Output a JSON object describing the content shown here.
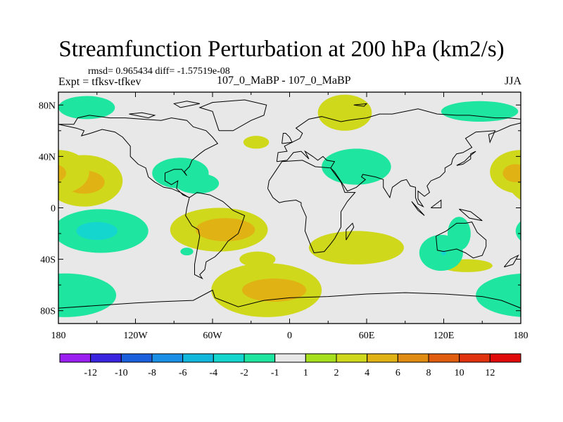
{
  "title": "Streamfunction Perturbation at 200 hPa (km2/s)",
  "stats_line": "rmsd= 0.965434 diff= -1.57519e-08",
  "expt_label": "Expt = tfksv-tfkev",
  "runs_label": "107_0_MaBP - 107_0_MaBP",
  "season": "JJA",
  "lat_labels": [
    {
      "text": "80N",
      "lat": 80
    },
    {
      "text": "40N",
      "lat": 40
    },
    {
      "text": "0",
      "lat": 0
    },
    {
      "text": "40S",
      "lat": -40
    },
    {
      "text": "80S",
      "lat": -80
    }
  ],
  "lon_labels": [
    {
      "text": "180",
      "lon": -180
    },
    {
      "text": "120W",
      "lon": -120
    },
    {
      "text": "60W",
      "lon": -60
    },
    {
      "text": "0",
      "lon": 0
    },
    {
      "text": "60E",
      "lon": 60
    },
    {
      "text": "120E",
      "lon": 120
    },
    {
      "text": "180",
      "lon": 180
    }
  ],
  "colorbar": {
    "colors": [
      "#9a1ff0",
      "#3a24e0",
      "#1c5fdc",
      "#1a8fe6",
      "#11b8dc",
      "#14d6cf",
      "#1ee6a0",
      "#e8e8e8",
      "#a6e01c",
      "#cfd81a",
      "#e0b214",
      "#e08c12",
      "#e05d10",
      "#e0320e",
      "#e00a0a"
    ],
    "labels": [
      "-12",
      "-10",
      "-8",
      "-6",
      "-4",
      "-2",
      "-1",
      "1",
      "2",
      "4",
      "6",
      "8",
      "10",
      "12"
    ]
  },
  "anomalies": [
    {
      "lon": -158,
      "lat": 78,
      "rlon": 22,
      "rlat": 9,
      "level": "-1"
    },
    {
      "lon": -160,
      "lat": 21,
      "rlon": 30,
      "rlat": 20,
      "level": "2"
    },
    {
      "lon": -160,
      "lat": 20,
      "rlon": 16,
      "rlat": 9,
      "level": "4"
    },
    {
      "lon": -147,
      "lat": -18,
      "rlon": 37,
      "rlat": 17,
      "level": "-1"
    },
    {
      "lon": -150,
      "lat": -18,
      "rlon": 16,
      "rlat": 7,
      "level": "-2"
    },
    {
      "lon": -175,
      "lat": -68,
      "rlon": 40,
      "rlat": 17,
      "level": "-1"
    },
    {
      "lon": -85,
      "lat": 27,
      "rlon": 22,
      "rlat": 12,
      "level": "-1"
    },
    {
      "lon": -72,
      "lat": 19,
      "rlon": 17,
      "rlat": 8,
      "level": "-1"
    },
    {
      "lon": -55,
      "lat": -17,
      "rlon": 38,
      "rlat": 17,
      "level": "2"
    },
    {
      "lon": -50,
      "lat": -17,
      "rlon": 23,
      "rlat": 9,
      "level": "4"
    },
    {
      "lon": -80,
      "lat": -34,
      "rlon": 5,
      "rlat": 3,
      "level": "-1"
    },
    {
      "lon": -25,
      "lat": -40,
      "rlon": 14,
      "rlat": 6,
      "level": "2"
    },
    {
      "lon": -18,
      "lat": -64,
      "rlon": 43,
      "rlat": 21,
      "level": "2"
    },
    {
      "lon": -12,
      "lat": -64,
      "rlon": 25,
      "rlat": 9,
      "level": "4"
    },
    {
      "lon": -26,
      "lat": 51,
      "rlon": 10,
      "rlat": 5,
      "level": "2"
    },
    {
      "lon": 43,
      "lat": 74,
      "rlon": 21,
      "rlat": 14,
      "level": "2"
    },
    {
      "lon": 52,
      "lat": 32,
      "rlon": 27,
      "rlat": 14,
      "level": "-1"
    },
    {
      "lon": 52,
      "lat": -31,
      "rlon": 37,
      "rlat": 13,
      "level": "2"
    },
    {
      "lon": 148,
      "lat": 75,
      "rlon": 30,
      "rlat": 8,
      "level": "-1"
    },
    {
      "lon": 180,
      "lat": 28,
      "rlon": 24,
      "rlat": 17,
      "level": "2"
    },
    {
      "lon": 176,
      "lat": 27,
      "rlon": 10,
      "rlat": 7,
      "level": "4"
    },
    {
      "lon": 138,
      "lat": -45,
      "rlon": 20,
      "rlat": 5,
      "level": "2"
    },
    {
      "lon": 118,
      "lat": -35,
      "rlon": 17,
      "rlat": 14,
      "level": "-1"
    },
    {
      "lon": 132,
      "lat": -20,
      "rlon": 9,
      "rlat": 13,
      "level": "-1"
    },
    {
      "lon": 120,
      "lat": -35,
      "rlon": 2,
      "rlat": 2,
      "level": "-2"
    },
    {
      "lon": 180,
      "lat": -72,
      "rlon": 6,
      "rlat": 6,
      "level": "-1"
    }
  ],
  "coastlines": [
    [
      [
        -180,
        65
      ],
      [
        -168,
        65
      ],
      [
        -165,
        70
      ],
      [
        -156,
        72
      ],
      [
        -140,
        70
      ],
      [
        -128,
        70
      ],
      [
        -115,
        69
      ],
      [
        -100,
        68
      ],
      [
        -92,
        70
      ],
      [
        -80,
        68
      ],
      [
        -75,
        63
      ],
      [
        -65,
        60
      ],
      [
        -60,
        55
      ],
      [
        -56,
        50
      ],
      [
        -66,
        45
      ],
      [
        -70,
        42
      ],
      [
        -76,
        37
      ],
      [
        -78,
        32
      ],
      [
        -82,
        28
      ],
      [
        -80,
        25
      ],
      [
        -84,
        30
      ],
      [
        -90,
        30
      ],
      [
        -97,
        27
      ],
      [
        -97,
        21
      ],
      [
        -92,
        18
      ],
      [
        -87,
        21
      ],
      [
        -88,
        15
      ],
      [
        -83,
        10
      ],
      [
        -78,
        8
      ],
      [
        -80,
        9
      ],
      [
        -85,
        12
      ],
      [
        -92,
        15
      ],
      [
        -98,
        16
      ],
      [
        -105,
        20
      ],
      [
        -110,
        24
      ],
      [
        -112,
        31
      ],
      [
        -118,
        34
      ],
      [
        -124,
        40
      ],
      [
        -124,
        48
      ],
      [
        -130,
        55
      ],
      [
        -136,
        59
      ],
      [
        -146,
        61
      ],
      [
        -155,
        58
      ],
      [
        -162,
        56
      ],
      [
        -160,
        60
      ],
      [
        -166,
        62
      ],
      [
        -180,
        65
      ]
    ],
    [
      [
        -78,
        8
      ],
      [
        -72,
        12
      ],
      [
        -62,
        10
      ],
      [
        -52,
        5
      ],
      [
        -44,
        -2
      ],
      [
        -35,
        -6
      ],
      [
        -37,
        -12
      ],
      [
        -40,
        -20
      ],
      [
        -48,
        -26
      ],
      [
        -53,
        -33
      ],
      [
        -58,
        -38
      ],
      [
        -65,
        -42
      ],
      [
        -66,
        -48
      ],
      [
        -70,
        -52
      ],
      [
        -68,
        -55
      ],
      [
        -74,
        -52
      ],
      [
        -74,
        -44
      ],
      [
        -72,
        -33
      ],
      [
        -70,
        -22
      ],
      [
        -71,
        -17
      ],
      [
        -76,
        -14
      ],
      [
        -81,
        -6
      ],
      [
        -80,
        0
      ],
      [
        -78,
        8
      ]
    ],
    [
      [
        -55,
        60
      ],
      [
        -44,
        60
      ],
      [
        -30,
        68
      ],
      [
        -20,
        72
      ],
      [
        -18,
        80
      ],
      [
        -35,
        84
      ],
      [
        -60,
        82
      ],
      [
        -70,
        78
      ],
      [
        -60,
        75
      ],
      [
        -55,
        60
      ]
    ],
    [
      [
        -17,
        15
      ],
      [
        -16,
        21
      ],
      [
        -10,
        30
      ],
      [
        -6,
        36
      ],
      [
        10,
        37
      ],
      [
        20,
        32
      ],
      [
        32,
        31
      ],
      [
        34,
        28
      ],
      [
        40,
        20
      ],
      [
        43,
        12
      ],
      [
        51,
        12
      ],
      [
        45,
        5
      ],
      [
        40,
        -3
      ],
      [
        40,
        -15
      ],
      [
        35,
        -24
      ],
      [
        32,
        -28
      ],
      [
        27,
        -34
      ],
      [
        19,
        -35
      ],
      [
        16,
        -28
      ],
      [
        12,
        -18
      ],
      [
        13,
        -7
      ],
      [
        9,
        2
      ],
      [
        9,
        4
      ],
      [
        5,
        6
      ],
      [
        -4,
        5
      ],
      [
        -8,
        4
      ],
      [
        -13,
        8
      ],
      [
        -17,
        15
      ]
    ],
    [
      [
        -10,
        36
      ],
      [
        -9,
        43
      ],
      [
        -2,
        44
      ],
      [
        -4,
        48
      ],
      [
        2,
        51
      ],
      [
        8,
        54
      ],
      [
        10,
        58
      ],
      [
        5,
        62
      ],
      [
        15,
        69
      ],
      [
        25,
        71
      ],
      [
        40,
        67
      ],
      [
        45,
        68
      ],
      [
        60,
        70
      ],
      [
        70,
        73
      ],
      [
        80,
        73
      ],
      [
        100,
        77
      ],
      [
        115,
        73
      ],
      [
        130,
        72
      ],
      [
        140,
        72
      ],
      [
        160,
        70
      ],
      [
        170,
        70
      ],
      [
        180,
        69
      ],
      [
        180,
        66
      ],
      [
        172,
        64
      ],
      [
        163,
        60
      ],
      [
        155,
        57
      ],
      [
        156,
        51
      ],
      [
        160,
        60
      ],
      [
        145,
        59
      ],
      [
        137,
        54
      ],
      [
        142,
        47
      ],
      [
        135,
        43
      ],
      [
        130,
        42
      ],
      [
        127,
        38
      ],
      [
        126,
        34
      ],
      [
        121,
        31
      ],
      [
        121,
        28
      ],
      [
        117,
        24
      ],
      [
        110,
        21
      ],
      [
        107,
        17
      ],
      [
        109,
        12
      ],
      [
        105,
        9
      ],
      [
        100,
        13
      ],
      [
        100,
        7
      ],
      [
        104,
        1
      ],
      [
        100,
        3
      ],
      [
        98,
        8
      ],
      [
        98,
        16
      ],
      [
        94,
        17
      ],
      [
        91,
        22
      ],
      [
        87,
        21
      ],
      [
        80,
        16
      ],
      [
        78,
        8
      ],
      [
        73,
        16
      ],
      [
        73,
        22
      ],
      [
        67,
        24
      ],
      [
        57,
        26
      ],
      [
        56,
        24
      ],
      [
        59,
        22
      ],
      [
        52,
        16
      ],
      [
        45,
        13
      ],
      [
        43,
        16
      ],
      [
        39,
        22
      ],
      [
        35,
        28
      ],
      [
        32,
        31
      ],
      [
        35,
        36
      ],
      [
        29,
        37
      ],
      [
        26,
        40
      ],
      [
        22,
        37
      ],
      [
        18,
        40
      ],
      [
        12,
        44
      ],
      [
        15,
        38
      ],
      [
        9,
        44
      ],
      [
        3,
        43
      ],
      [
        -2,
        37
      ],
      [
        -10,
        36
      ]
    ],
    [
      [
        114,
        -22
      ],
      [
        122,
        -18
      ],
      [
        130,
        -12
      ],
      [
        137,
        -12
      ],
      [
        142,
        -11
      ],
      [
        146,
        -19
      ],
      [
        153,
        -25
      ],
      [
        153,
        -30
      ],
      [
        150,
        -37
      ],
      [
        143,
        -39
      ],
      [
        137,
        -35
      ],
      [
        130,
        -32
      ],
      [
        120,
        -34
      ],
      [
        115,
        -33
      ],
      [
        114,
        -22
      ]
    ],
    [
      [
        44,
        -25
      ],
      [
        50,
        -15
      ],
      [
        49,
        -12
      ],
      [
        44,
        -17
      ],
      [
        44,
        -25
      ]
    ],
    [
      [
        -180,
        -78
      ],
      [
        -150,
        -76
      ],
      [
        -120,
        -74
      ],
      [
        -100,
        -73
      ],
      [
        -75,
        -72
      ],
      [
        -60,
        -64
      ],
      [
        -58,
        -70
      ],
      [
        -40,
        -77
      ],
      [
        -20,
        -72
      ],
      [
        0,
        -70
      ],
      [
        30,
        -69
      ],
      [
        60,
        -67
      ],
      [
        90,
        -66
      ],
      [
        120,
        -67
      ],
      [
        150,
        -69
      ],
      [
        165,
        -72
      ],
      [
        180,
        -78
      ]
    ],
    [
      [
        -85,
        78
      ],
      [
        -70,
        81
      ],
      [
        -80,
        83
      ],
      [
        -90,
        81
      ],
      [
        -85,
        78
      ]
    ],
    [
      [
        -125,
        73
      ],
      [
        -115,
        74
      ],
      [
        -105,
        72
      ],
      [
        -110,
        70
      ],
      [
        -125,
        73
      ]
    ],
    [
      [
        130,
        33
      ],
      [
        135,
        34
      ],
      [
        141,
        38
      ],
      [
        141,
        42
      ],
      [
        145,
        44
      ],
      [
        140,
        40
      ],
      [
        136,
        36
      ],
      [
        130,
        33
      ]
    ],
    [
      [
        -6,
        50
      ],
      [
        2,
        51
      ],
      [
        0,
        55
      ],
      [
        -3,
        58
      ],
      [
        -5,
        58
      ],
      [
        -6,
        50
      ]
    ],
    [
      [
        95,
        5
      ],
      [
        105,
        -6
      ],
      [
        100,
        -2
      ],
      [
        95,
        5
      ]
    ],
    [
      [
        110,
        0
      ],
      [
        118,
        6
      ],
      [
        118,
        0
      ],
      [
        110,
        0
      ]
    ],
    [
      [
        132,
        -1
      ],
      [
        141,
        -3
      ],
      [
        150,
        -10
      ],
      [
        140,
        -8
      ],
      [
        132,
        -1
      ]
    ],
    [
      [
        167,
        -46
      ],
      [
        172,
        -40
      ],
      [
        178,
        -37
      ],
      [
        174,
        -44
      ],
      [
        167,
        -46
      ]
    ],
    [
      [
        50,
        80
      ],
      [
        60,
        81
      ],
      [
        58,
        79
      ],
      [
        50,
        80
      ]
    ]
  ]
}
